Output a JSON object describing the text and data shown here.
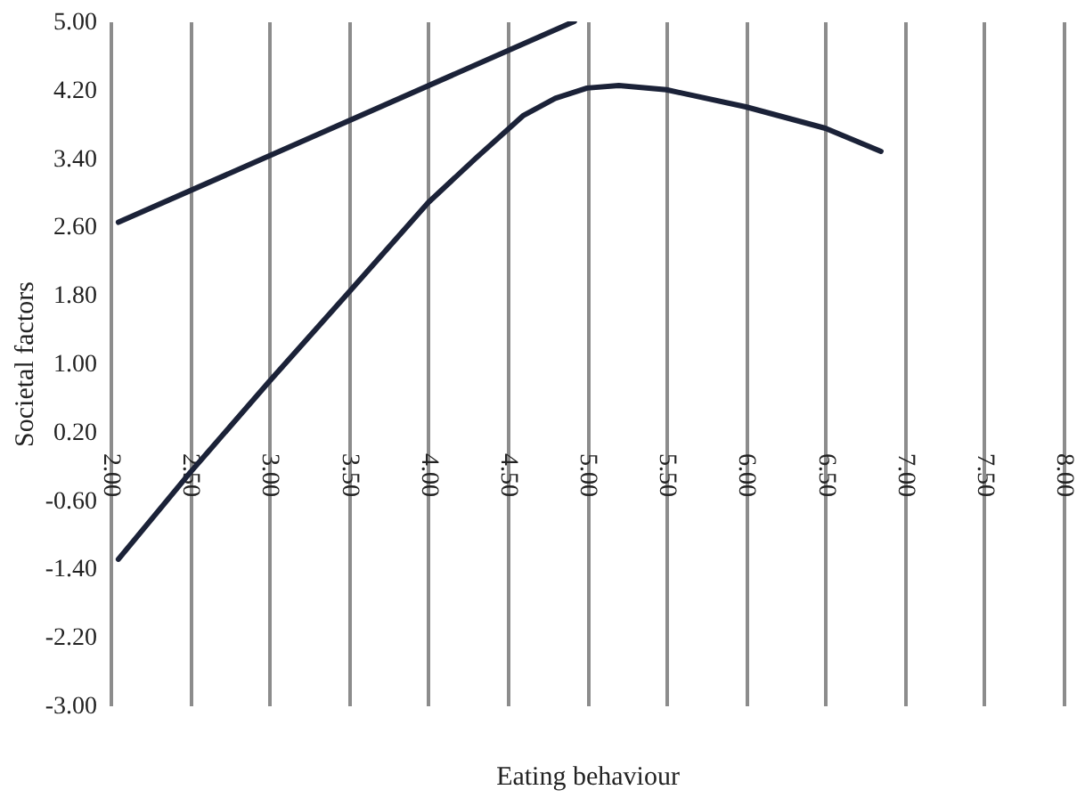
{
  "chart_data": {
    "type": "line",
    "xlabel": "Eating behaviour",
    "ylabel": "Societal factors",
    "xlim": [
      2,
      8
    ],
    "ylim": [
      -3,
      5
    ],
    "xticks": [
      {
        "value": 2,
        "label": "2.00"
      },
      {
        "value": 2.5,
        "label": "2.50"
      },
      {
        "value": 3,
        "label": "3.00"
      },
      {
        "value": 3.5,
        "label": "3.50"
      },
      {
        "value": 4,
        "label": "4.00"
      },
      {
        "value": 4.5,
        "label": "4.50"
      },
      {
        "value": 5,
        "label": "5.00"
      },
      {
        "value": 5.5,
        "label": "5.50"
      },
      {
        "value": 6,
        "label": "6.00"
      },
      {
        "value": 6.5,
        "label": "6.50"
      },
      {
        "value": 7,
        "label": "7.00"
      },
      {
        "value": 7.5,
        "label": "7.50"
      },
      {
        "value": 8,
        "label": "8.00"
      }
    ],
    "yticks": [
      {
        "value": 5,
        "label": "5.00"
      },
      {
        "value": 4.2,
        "label": "4.20"
      },
      {
        "value": 3.4,
        "label": "3.40"
      },
      {
        "value": 2.6,
        "label": "2.60"
      },
      {
        "value": 1.8,
        "label": "1.80"
      },
      {
        "value": 1,
        "label": "1.00"
      },
      {
        "value": 0.2,
        "label": "0.20"
      },
      {
        "value": -0.6,
        "label": "-0.60"
      },
      {
        "value": -1.4,
        "label": "-1.40"
      },
      {
        "value": -2.2,
        "label": "-2.20"
      },
      {
        "value": -3,
        "label": "-3.00"
      }
    ],
    "grid": "x",
    "marker": "none",
    "line_style": "solid",
    "series": [
      {
        "color": "#1b2238",
        "x": [
          2.05,
          4.92
        ],
        "values": [
          2.65,
          5.0
        ]
      },
      {
        "color": "#1b2238",
        "x": [
          2.05,
          2.5,
          3.0,
          3.5,
          4.0,
          4.3,
          4.6,
          4.8,
          5.0,
          5.2,
          5.5,
          6.0,
          6.5,
          6.85
        ],
        "values": [
          -1.29,
          -0.28,
          0.79,
          1.83,
          2.88,
          3.4,
          3.9,
          4.1,
          4.22,
          4.25,
          4.2,
          4.0,
          3.75,
          3.48
        ]
      }
    ]
  }
}
